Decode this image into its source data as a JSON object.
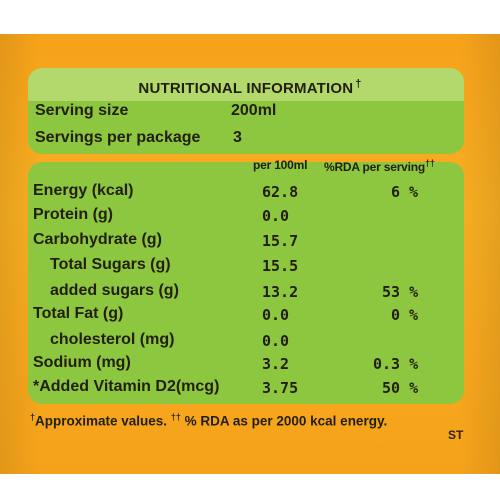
{
  "header": {
    "title": "NUTRITIONAL INFORMATION",
    "title_mark": "†"
  },
  "serving": {
    "size_label": "Serving size",
    "size_value": "200ml",
    "per_package_label": "Servings per package",
    "per_package_value": "3"
  },
  "columns": {
    "per100": "per 100ml",
    "rda": "%RDA per serving",
    "rda_mark": "††"
  },
  "rows": [
    {
      "name": "Energy (kcal)",
      "per100": "62.8",
      "rda": "6 %"
    },
    {
      "name": "Protein (g)",
      "per100": "0.0",
      "rda": ""
    },
    {
      "name": "Carbohydrate (g)",
      "per100": "15.7",
      "rda": ""
    },
    {
      "name": "Total Sugars (g)",
      "per100": "15.5",
      "rda": ""
    },
    {
      "name": "added sugars (g)",
      "per100": "13.2",
      "rda": "53 %"
    },
    {
      "name": "Total Fat (g)",
      "per100": "0.0",
      "rda": "0 %"
    },
    {
      "name": "cholesterol (mg)",
      "per100": "0.0",
      "rda": ""
    },
    {
      "name": "Sodium (mg)",
      "per100": "3.2",
      "rda": "0.3 %"
    },
    {
      "name": "*Added Vitamin D2(mcg)",
      "per100": "3.75",
      "rda": "50 %"
    }
  ],
  "footnote": {
    "mark1": "†",
    "text1": "Approximate values. ",
    "mark2": "††",
    "text2": " % RDA as per 2000 kcal energy."
  },
  "edge_text": "ST",
  "colors": {
    "label_orange": "#f6a21a",
    "panel_green": "#8dc63f",
    "header_green": "#b3d96d"
  }
}
